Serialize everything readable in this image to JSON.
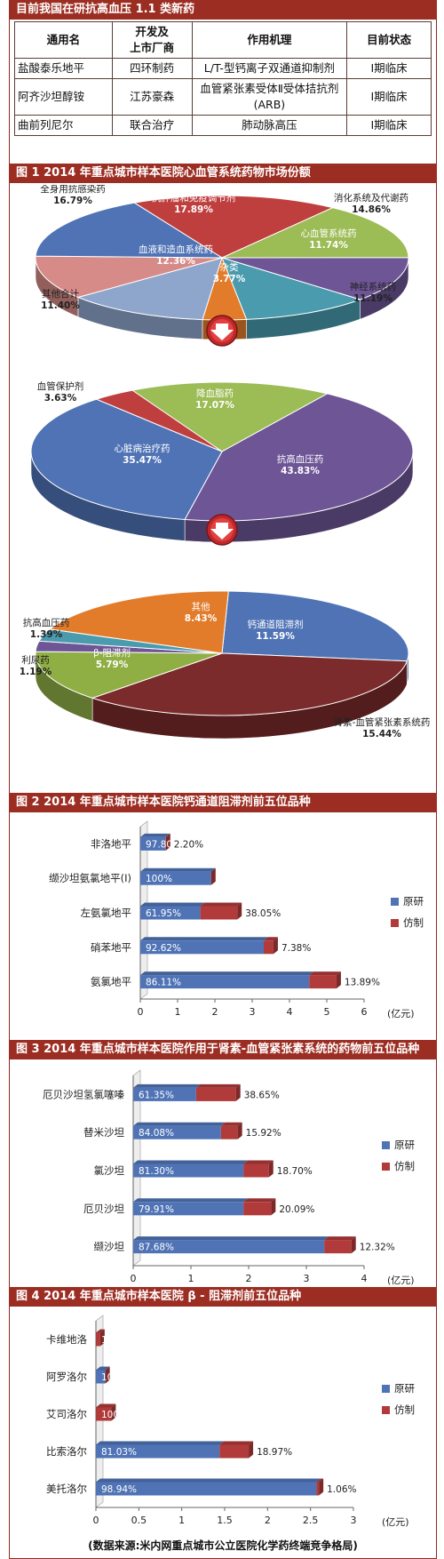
{
  "table": {
    "title": "目前我国在研抗高血压 1.1 类新药",
    "headers": [
      "通用名",
      "开发及\n上市厂商",
      "作用机理",
      "目前状态"
    ],
    "rows": [
      [
        "盐酸泰乐地平",
        "四环制药",
        "L/T-型钙离子双通道抑制剂",
        "Ⅰ期临床"
      ],
      [
        "阿齐沙坦醇铵",
        "江苏豪森",
        "血管紧张素受体Ⅱ受体拮抗剂(ARB)",
        "Ⅰ期临床"
      ],
      [
        "曲前列尼尔",
        "联合治疗",
        "肺动脉高压",
        "Ⅰ期临床"
      ]
    ]
  },
  "colors": {
    "title_bar": "#9c2d22",
    "blue": "#4f73b5",
    "maroon": "#7b2b2b",
    "green": "#9cbc55",
    "purple": "#6d5596",
    "orange": "#e27c2b",
    "pink": "#d78b88",
    "lightblue": "#8fa6cc",
    "teal": "#4a9bae",
    "red": "#bf3f3f",
    "original": "#4f73b5",
    "generic": "#b13a3a"
  },
  "arrow_icons": [
    "down-arrow-icon",
    "down-arrow-icon"
  ],
  "source": "(数据来源:米内网重点城市公立医院化学药终端竞争格局)",
  "chart_data": [
    {
      "type": "pie",
      "title": "图 1 2014 年重点城市样本医院心血管系统药物市场份额",
      "slices": [
        {
          "label": "抗肿瘤和免疫调节剂",
          "value": 17.89,
          "text": "17.89%",
          "color": "#bf3f3f"
        },
        {
          "label": "消化系统及代谢药",
          "value": 14.86,
          "text": "14.86%",
          "color": "#9cbc55"
        },
        {
          "label": "心血管系统药",
          "value": 11.74,
          "text": "11.74%",
          "color": "#6d5596"
        },
        {
          "label": "神经系统药",
          "value": 11.19,
          "text": "11.19%",
          "color": "#4a9bae"
        },
        {
          "label": "杂类",
          "value": 3.77,
          "text": "3.77%",
          "color": "#e27c2b"
        },
        {
          "label": "血液和造血系统药",
          "value": 12.36,
          "text": "12.36%",
          "color": "#8fa6cc"
        },
        {
          "label": "其他合计",
          "value": 11.4,
          "text": "11.40%",
          "color": "#d78b88"
        },
        {
          "label": "全身用抗感染药",
          "value": 16.79,
          "text": "16.79%",
          "color": "#4f73b5"
        }
      ]
    },
    {
      "type": "pie",
      "title": "",
      "slices": [
        {
          "label": "降血脂药",
          "value": 17.07,
          "text": "17.07%",
          "color": "#9cbc55"
        },
        {
          "label": "抗高血压药",
          "value": 43.83,
          "text": "43.83%",
          "color": "#6d5596"
        },
        {
          "label": "心脏病治疗药",
          "value": 35.47,
          "text": "35.47%",
          "color": "#4f73b5"
        },
        {
          "label": "血管保护剂",
          "value": 3.63,
          "text": "3.63%",
          "color": "#bf3f3f"
        }
      ]
    },
    {
      "type": "pie",
      "title": "",
      "slices": [
        {
          "label": "钙通道阻滞剂",
          "value": 11.59,
          "text": "11.59%",
          "color": "#4f73b5"
        },
        {
          "label": "肾素-血管紧张素系统药",
          "value": 15.44,
          "text": "15.44%",
          "color": "#7b2b2b"
        },
        {
          "label": "β-阻滞剂",
          "value": 5.79,
          "text": "5.79%",
          "color": "#8fae44"
        },
        {
          "label": "利尿药",
          "value": 1.19,
          "text": "1.19%",
          "color": "#6d5596"
        },
        {
          "label": "抗高血压药",
          "value": 1.39,
          "text": "1.39%",
          "color": "#4a9bae"
        },
        {
          "label": "其他",
          "value": 8.43,
          "text": "8.43%",
          "color": "#e27c2b"
        }
      ]
    },
    {
      "type": "bar",
      "title": "图 2 2014 年重点城市样本医院钙通道阻滞剂前五位品种",
      "categories": [
        "非洛地平",
        "缬沙坦氨氯地平(Ⅰ)",
        "左氨氯地平",
        "硝苯地平",
        "氨氯地平"
      ],
      "series": [
        {
          "name": "原研",
          "values": [
            0.67,
            1.9,
            1.61,
            3.31,
            4.53
          ],
          "labels": [
            "97.80%",
            "100%",
            "61.95%",
            "92.62%",
            "86.11%"
          ]
        },
        {
          "name": "仿制",
          "values": [
            0.015,
            0,
            0.99,
            0.26,
            0.73
          ],
          "labels": [
            "2.20%",
            "",
            "38.05%",
            "7.38%",
            "13.89%"
          ]
        }
      ],
      "xlim": [
        0,
        6
      ],
      "ticks": [
        "0",
        "1",
        "2",
        "3",
        "4",
        "5",
        "6"
      ],
      "unit": "(亿元)"
    },
    {
      "type": "bar",
      "title": "图 3 2014 年重点城市样本医院作用于肾素-血管紧张素系统的药物前五位品种",
      "categories": [
        "厄贝沙坦氢氯噻嗪",
        "替米沙坦",
        "氯沙坦",
        "厄贝沙坦",
        "缬沙坦"
      ],
      "series": [
        {
          "name": "原研",
          "values": [
            1.09,
            1.52,
            1.91,
            1.91,
            3.31
          ],
          "labels": [
            "61.35%",
            "84.08%",
            "81.30%",
            "79.91%",
            "87.68%"
          ]
        },
        {
          "name": "仿制",
          "values": [
            0.69,
            0.29,
            0.44,
            0.48,
            0.47
          ],
          "labels": [
            "38.65%",
            "15.92%",
            "18.70%",
            "20.09%",
            "12.32%"
          ]
        }
      ],
      "xlim": [
        0,
        4
      ],
      "ticks": [
        "0",
        "1",
        "2",
        "3",
        "4"
      ],
      "unit": "(亿元)"
    },
    {
      "type": "bar",
      "title": "图 4 2014 年重点城市样本医院 β - 阻滞剂前五位品种",
      "categories": [
        "卡维地洛",
        "阿罗洛尔",
        "艾司洛尔",
        "比索洛尔",
        "美托洛尔"
      ],
      "series": [
        {
          "name": "原研",
          "values": [
            0,
            0.11,
            0,
            1.44,
            2.57
          ],
          "labels": [
            "",
            "100%",
            "",
            "81.03%",
            "98.94%"
          ]
        },
        {
          "name": "仿制",
          "values": [
            0.05,
            0,
            0.18,
            0.34,
            0.028
          ],
          "labels": [
            "100%",
            "",
            "100%",
            "18.97%",
            "1.06%"
          ]
        }
      ],
      "xlim": [
        0,
        3
      ],
      "ticks": [
        "0",
        "0.5",
        "1",
        "1.5",
        "2",
        "2.5",
        "3"
      ],
      "unit": "(亿元)"
    }
  ]
}
